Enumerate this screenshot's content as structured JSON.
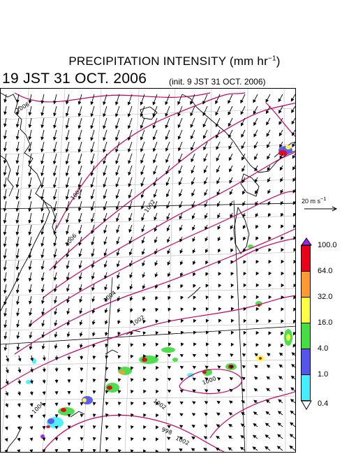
{
  "header": {
    "title": "PRECIPITATION INTENSITY (mm hr",
    "title_sup": "−1",
    "title_end": ")",
    "valid_time": "19 JST 31 OCT. 2006",
    "init_time": "(init. 9 JST 31 OCT. 2006)"
  },
  "reference_vector": {
    "label": "20 m s",
    "label_sup": "−1"
  },
  "colorbar": {
    "levels": [
      "100.0",
      "64.0",
      "32.0",
      "16.0",
      "4.0",
      "1.0",
      "0.4"
    ],
    "colors": [
      "#a020f0",
      "#e8001a",
      "#ff9933",
      "#ffff44",
      "#44dd44",
      "#5555ee",
      "#44eeff",
      "#ffffff"
    ]
  },
  "map": {
    "isobar_labels": [
      "1006",
      "1006",
      "1004",
      "1002",
      "1002",
      "1002",
      "1002",
      "1000",
      "998",
      "1004",
      "1002"
    ],
    "isobar_color": "#cc0066",
    "wind_direction": "northeasterly"
  }
}
